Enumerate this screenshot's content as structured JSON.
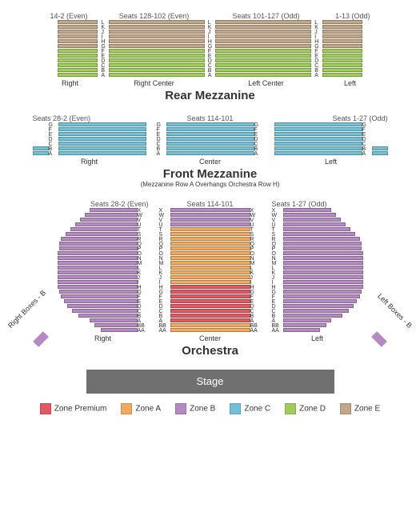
{
  "zones": {
    "premium": "#e15a63",
    "a": "#f0a95e",
    "b": "#b589c2",
    "c": "#71c0d8",
    "d": "#a0cc5a",
    "e": "#c3a688"
  },
  "rearMezz": {
    "title": "Rear Mezzanine",
    "seatLabels": [
      "14-2 (Even)",
      "Seats 128-102 (Even)",
      "Seats 101-127 (Odd)",
      "1-13 (Odd)"
    ],
    "sectionLabels": [
      "Right",
      "Right Center",
      "Left Center",
      "Left"
    ],
    "rowLetters": [
      "L",
      "K",
      "J",
      "I",
      "H",
      "G",
      "F",
      "E",
      "D",
      "C",
      "B",
      "A"
    ],
    "sideWidth": 50,
    "centerWidth": 120,
    "gap": 5,
    "zoneE_rows": 6,
    "zoneD_rows": 6
  },
  "frontMezz": {
    "title": "Front Mezzanine",
    "subtitle": "(Mezzanine Row A Overhangs Orchestra Row H)",
    "seatLabels": [
      "Seats 28-2 (Even)",
      "Seats 114-101",
      "Seats 1-27 (Odd)"
    ],
    "sectionLabels": [
      "Right",
      "Center",
      "Left"
    ],
    "rowLetters": [
      "G",
      "F",
      "E",
      "D",
      "C",
      "B",
      "A"
    ],
    "sectionWidth": 110,
    "sideStub": 20,
    "gap": 5,
    "labelWidth": 12
  },
  "orchestra": {
    "title": "Orchestra",
    "seatLabels": [
      "Seats 28-2 (Even)",
      "Seats 114-101",
      "Seats 1-27 (Odd)"
    ],
    "sectionLabels": [
      "Right",
      "Center",
      "Left"
    ],
    "rowLetters": [
      "X",
      "W",
      "V",
      "U",
      "T",
      "S",
      "R",
      "Q",
      "P",
      "O",
      "N",
      "M",
      "L",
      "K",
      "J",
      "I",
      "H",
      "G",
      "F",
      "E",
      "D",
      "C",
      "B",
      "A",
      "BB",
      "AA"
    ],
    "centerWidth": 100,
    "sideRowWidthsRight": [
      60,
      66,
      72,
      78,
      84,
      90,
      96,
      98,
      98,
      100,
      100,
      100,
      100,
      100,
      100,
      100,
      100,
      98,
      96,
      92,
      88,
      82,
      74,
      60,
      54,
      46
    ],
    "sideRowWidthsLeft": [
      60,
      66,
      72,
      78,
      84,
      90,
      96,
      98,
      98,
      100,
      100,
      100,
      100,
      100,
      100,
      100,
      100,
      98,
      96,
      92,
      88,
      82,
      74,
      60,
      54,
      46
    ],
    "centerZones": [
      "b",
      "b",
      "b",
      "b",
      "a",
      "a",
      "a",
      "a",
      "a",
      "a",
      "a",
      "a",
      "a",
      "a",
      "a",
      "a",
      "premium",
      "premium",
      "premium",
      "premium",
      "premium",
      "premium",
      "premium",
      "premium",
      "a",
      "a"
    ],
    "sideZones": [
      "b",
      "b",
      "b",
      "b",
      "b",
      "b",
      "b",
      "b",
      "b",
      "b",
      "b",
      "b",
      "b",
      "b",
      "b",
      "b",
      "b",
      "b",
      "b",
      "b",
      "b",
      "b",
      "b",
      "b",
      "b",
      "b"
    ],
    "boxLabels": {
      "right": "Right Boxes - B",
      "left": "Left Boxes - B"
    },
    "gap": 5,
    "labelWidth": 14
  },
  "stage": "Stage",
  "legend": [
    {
      "label": "Zone Premium",
      "zone": "premium"
    },
    {
      "label": "Zone A",
      "zone": "a"
    },
    {
      "label": "Zone B",
      "zone": "b"
    },
    {
      "label": "Zone C",
      "zone": "c"
    },
    {
      "label": "Zone D",
      "zone": "d"
    },
    {
      "label": "Zone E",
      "zone": "e"
    }
  ]
}
